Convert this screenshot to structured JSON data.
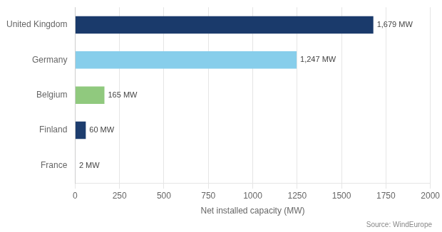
{
  "chart_data": {
    "type": "bar",
    "orientation": "horizontal",
    "categories": [
      "France",
      "Finland",
      "Belgium",
      "Germany",
      "United Kingdom"
    ],
    "values": [
      2,
      60,
      165,
      1247,
      1679
    ],
    "value_labels": [
      "2 MW",
      "60 MW",
      "165 MW",
      "1,247 MW",
      "1,679 MW"
    ],
    "data_labels": true,
    "colors": [
      "#2e7db5",
      "#1d3d6e",
      "#90c97e",
      "#87ceeb",
      "#1a3a6b"
    ],
    "xlabel": "Net installed capacity (MW)",
    "xlim": [
      0,
      2000
    ],
    "xticks": [
      0,
      250,
      500,
      750,
      1000,
      1250,
      1500,
      1750,
      2000
    ],
    "grid": true,
    "annotation": "Source: WindEurope"
  }
}
